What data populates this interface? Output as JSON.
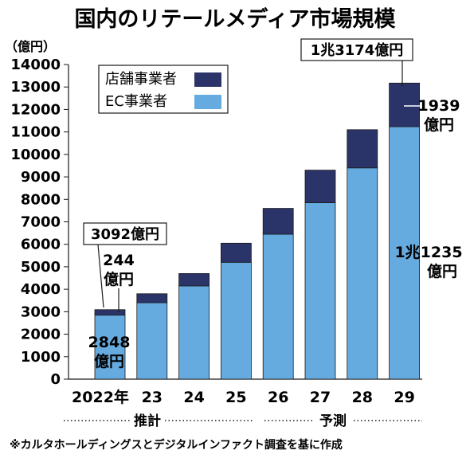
{
  "chart_data": {
    "type": "bar",
    "stacked": true,
    "title": "国内のリテールメディア市場規模",
    "unit_label": "（億円）",
    "categories": [
      "2022年",
      "23",
      "24",
      "25",
      "26",
      "27",
      "28",
      "29"
    ],
    "series": [
      {
        "name": "EC事業者",
        "color": "#66abdf",
        "values": [
          2848,
          3400,
          4150,
          5200,
          6450,
          7850,
          9400,
          11235
        ]
      },
      {
        "name": "店舗事業者",
        "color": "#2b3468",
        "values": [
          244,
          400,
          550,
          850,
          1150,
          1450,
          1700,
          1939
        ]
      }
    ],
    "ylim": [
      0,
      14000
    ],
    "yticks": [
      0,
      1000,
      2000,
      3000,
      4000,
      5000,
      6000,
      7000,
      8000,
      9000,
      10000,
      11000,
      12000,
      13000,
      14000
    ],
    "legend_position": "top-left",
    "grid": false,
    "annotations": {
      "total_2022": "3092億円",
      "store_2022_value": "244",
      "store_2022_unit": "億円",
      "ec_2022_value": "2848",
      "ec_2022_unit": "億円",
      "total_2029": "1兆3174億円",
      "store_2029_value": "1939",
      "store_2029_unit": "億円",
      "ec_2029_value": "1兆1235",
      "ec_2029_unit": "億円"
    },
    "period_labels": {
      "estimate": "推計",
      "forecast": "予測"
    },
    "source": "※カルタホールディングスとデジタルインファクト調査を基に作成"
  }
}
